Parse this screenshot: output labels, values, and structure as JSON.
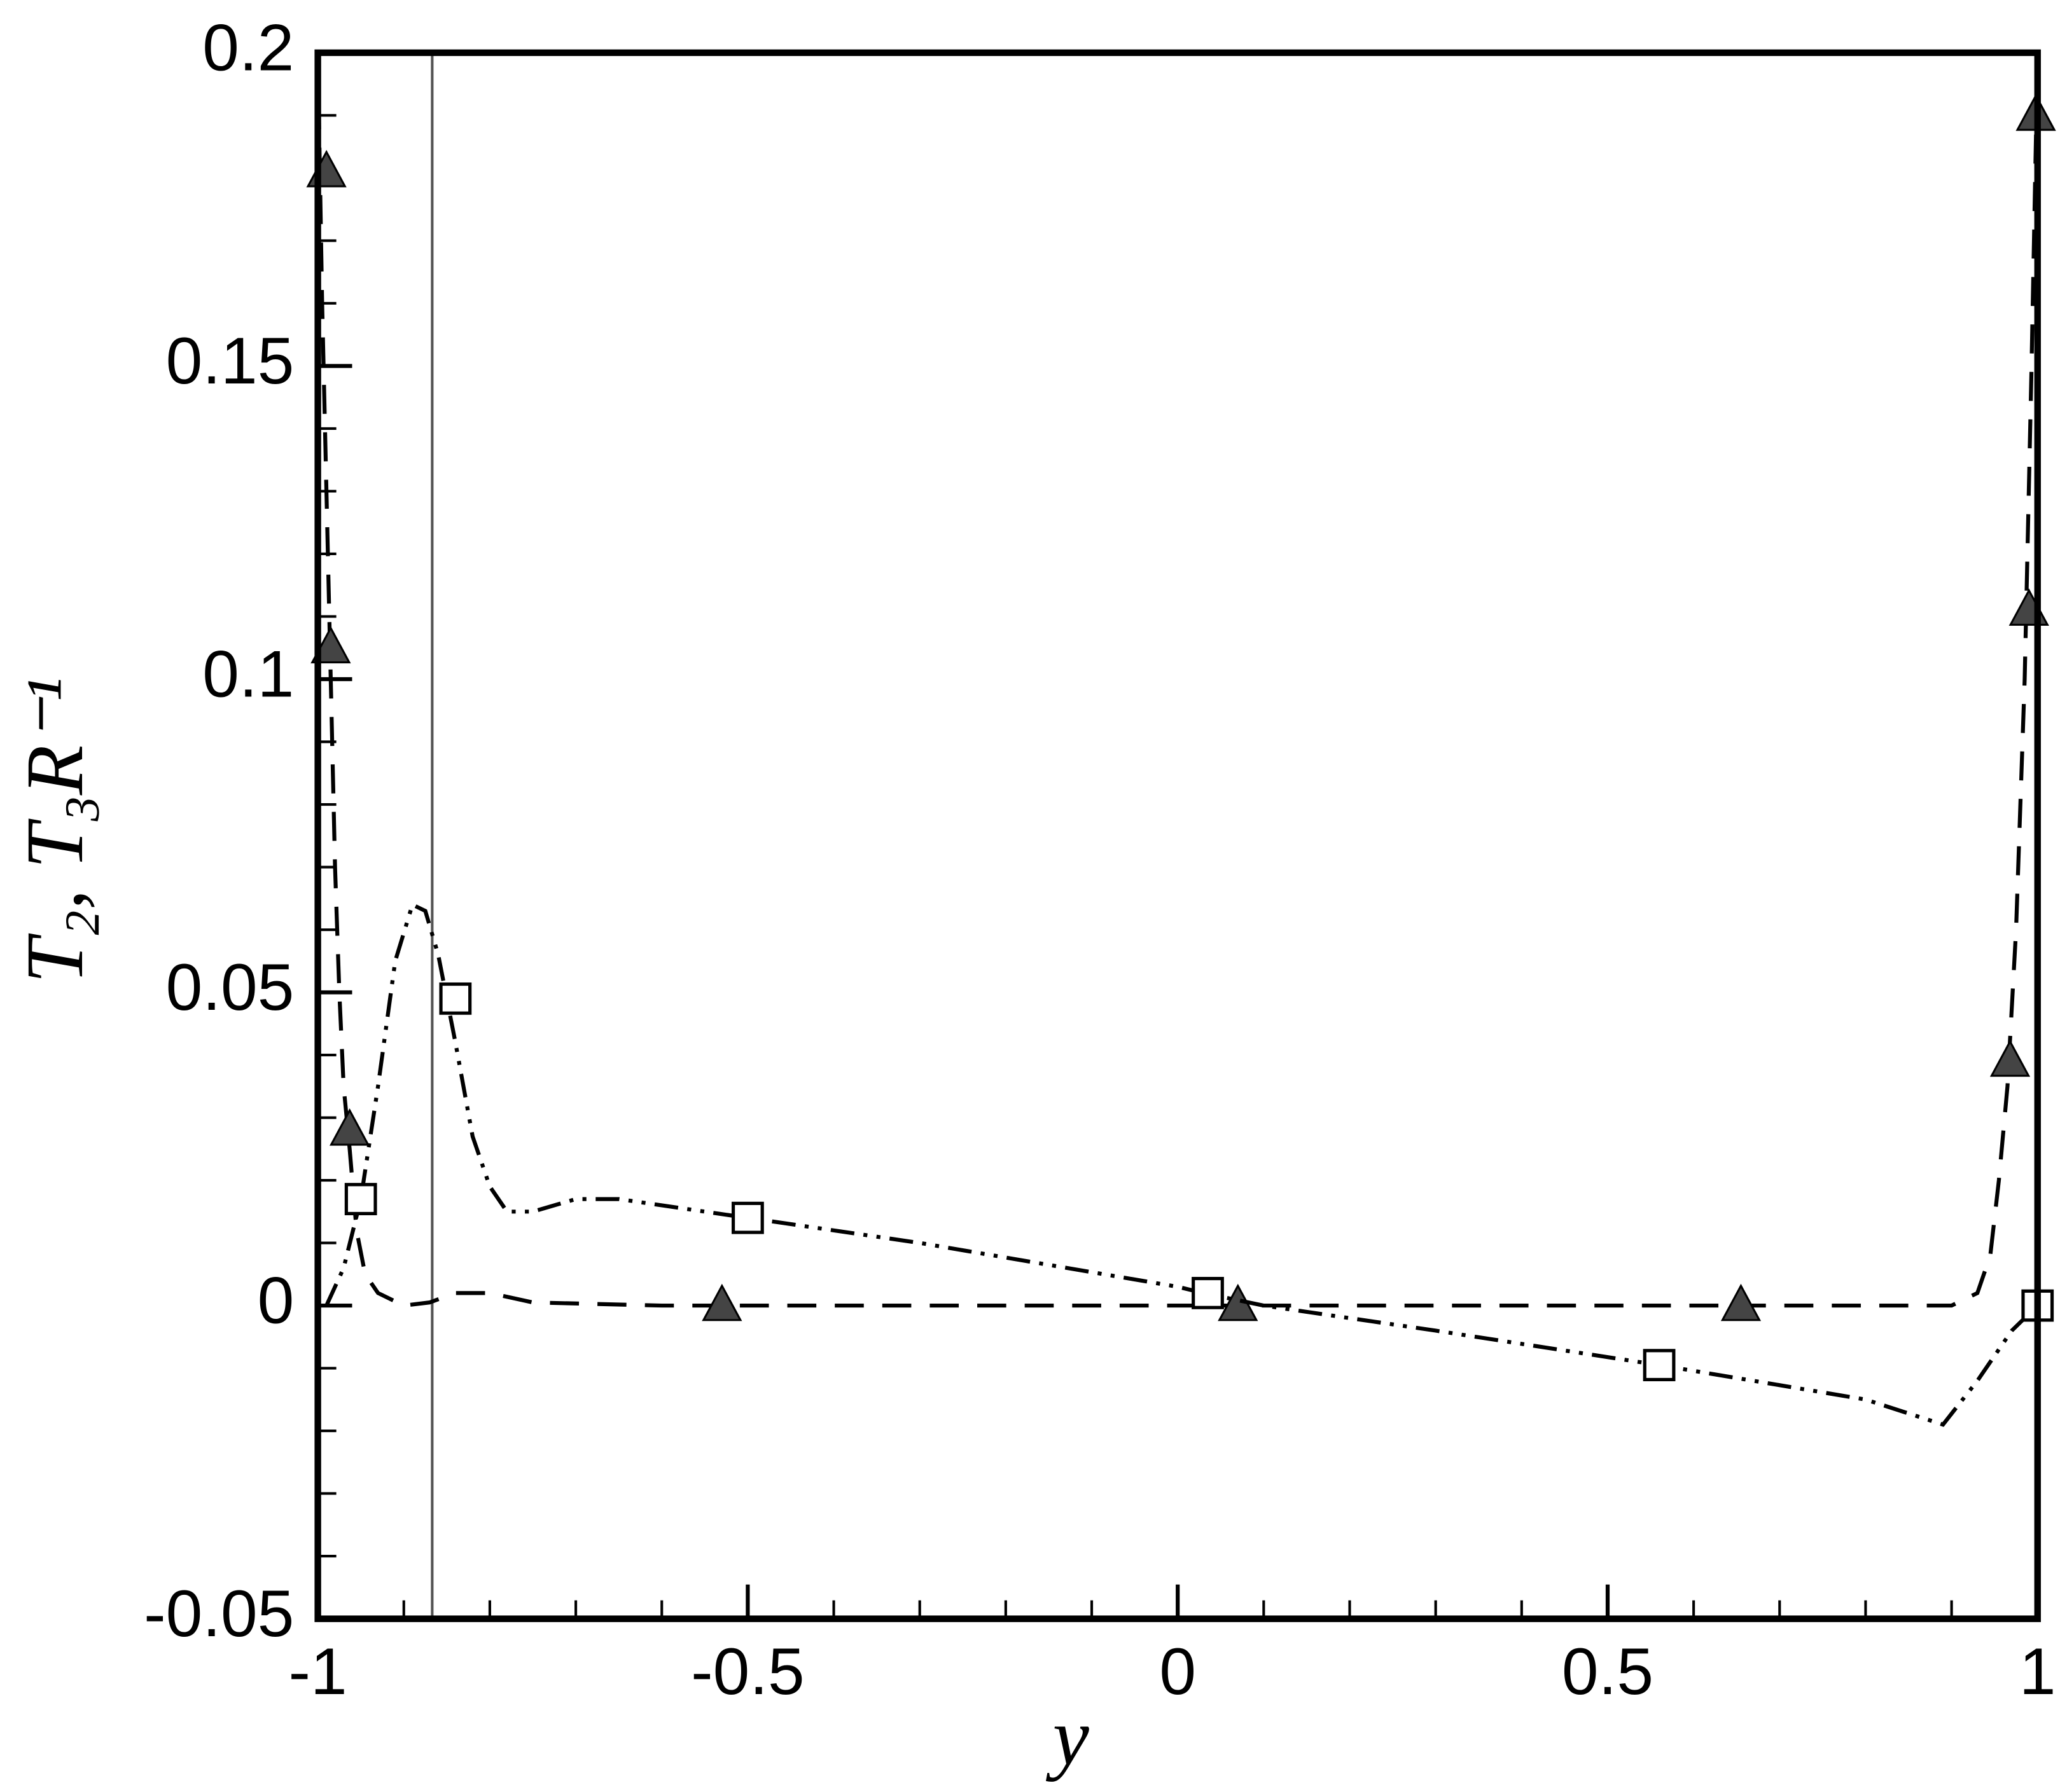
{
  "chart_data": {
    "type": "line",
    "xlabel": "y",
    "ylabel": "T₂, T₃R⁻¹",
    "xlim": [
      -1,
      1
    ],
    "ylim": [
      -0.05,
      0.2
    ],
    "xticks": [
      -1,
      -0.5,
      0,
      0.5,
      1
    ],
    "yticks": [
      -0.05,
      0,
      0.05,
      0.1,
      0.15,
      0.2
    ],
    "xminorticks": [
      -0.9,
      -0.8,
      -0.7,
      -0.6,
      -0.4,
      -0.3,
      -0.2,
      -0.1,
      0.1,
      0.2,
      0.3,
      0.4,
      0.6,
      0.7,
      0.8,
      0.9
    ],
    "yminorticks": [
      -0.04,
      -0.03,
      -0.02,
      -0.01,
      0.01,
      0.02,
      0.03,
      0.04,
      0.06,
      0.07,
      0.08,
      0.09,
      0.11,
      0.12,
      0.13,
      0.14,
      0.16,
      0.17,
      0.18,
      0.19
    ],
    "vline": -0.867,
    "series": [
      {
        "color": "#000000",
        "dash": "dashed",
        "marker": "filled-triangle",
        "marker_color": "#444444",
        "x": [
          -1,
          -0.995,
          -0.99,
          -0.985,
          -0.98,
          -0.975,
          -0.97,
          -0.963,
          -0.955,
          -0.945,
          -0.93,
          -0.9,
          -0.87,
          -0.84,
          -0.8,
          -0.75,
          -0.6,
          0,
          0.5,
          0.9,
          0.93,
          0.945,
          0.955,
          0.965,
          0.975,
          0.985,
          0.993,
          1
        ],
        "values": [
          0.2,
          0.16,
          0.13,
          0.1,
          0.07,
          0.05,
          0.035,
          0.025,
          0.012,
          0.005,
          0.002,
          0,
          0.0005,
          0.002,
          0.002,
          0.0005,
          0,
          0,
          0,
          0,
          0.002,
          0.008,
          0.02,
          0.035,
          0.06,
          0.1,
          0.15,
          0.2
        ],
        "marker_x": [
          -0.99,
          -0.985,
          -0.963,
          -0.53,
          0.07,
          0.655,
          0.968,
          0.99,
          0.998
        ],
        "marker_values": [
          0.181,
          0.105,
          0.028,
          0,
          0,
          0,
          0.039,
          0.111,
          0.19
        ]
      },
      {
        "color": "#000000",
        "dash": "dash-dot-dot",
        "marker": "open-square",
        "marker_color": "#000000",
        "x": [
          -0.99,
          -0.97,
          -0.95,
          -0.93,
          -0.91,
          -0.89,
          -0.875,
          -0.86,
          -0.84,
          -0.82,
          -0.8,
          -0.78,
          -0.75,
          -0.7,
          -0.65,
          -0.6,
          -0.5,
          -0.3,
          0,
          0.03,
          0.1,
          0.3,
          0.56,
          0.8,
          0.89,
          0.93,
          0.97,
          1
        ],
        "values": [
          0,
          0.006,
          0.017,
          0.035,
          0.055,
          0.064,
          0.063,
          0.056,
          0.042,
          0.027,
          0.019,
          0.015,
          0.015,
          0.017,
          0.017,
          0.016,
          0.014,
          0.01,
          0.003,
          0.002,
          0,
          -0.004,
          -0.0095,
          -0.015,
          -0.019,
          -0.012,
          -0.004,
          0
        ],
        "marker_x": [
          -0.95,
          -0.84,
          -0.5,
          0.035,
          0.56,
          1.0
        ],
        "marker_values": [
          0.017,
          0.049,
          0.014,
          0.002,
          -0.0095,
          0
        ]
      }
    ]
  }
}
